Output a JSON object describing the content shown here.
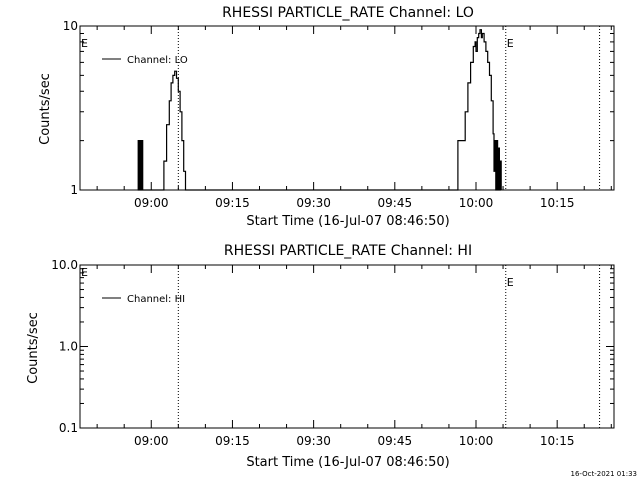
{
  "footer_timestamp": "16-Oct-2021 01:33",
  "chart_data": [
    {
      "type": "line",
      "title": "RHESSI PARTICLE_RATE Channel: LO",
      "xlabel": "Start Time (16-Jul-07 08:46:50)",
      "ylabel": "Counts/sec",
      "yscale": "log",
      "ylim": [
        1,
        10
      ],
      "xlim": [
        "08:46:50",
        "10:25:30"
      ],
      "y_ticks": [
        {
          "value": 1,
          "label": "1"
        },
        {
          "value": 10,
          "label": "10"
        }
      ],
      "x_ticks": [
        {
          "time": "09:00",
          "label": "09:00"
        },
        {
          "time": "09:15",
          "label": "09:15"
        },
        {
          "time": "09:30",
          "label": "09:30"
        },
        {
          "time": "09:45",
          "label": "09:45"
        },
        {
          "time": "10:00",
          "label": "10:00"
        },
        {
          "time": "10:15",
          "label": "10:15"
        }
      ],
      "vlines": [
        {
          "time": "09:05:00",
          "label": ""
        },
        {
          "time": "10:05:30",
          "label": "E"
        },
        {
          "time": "10:22:50",
          "label": ""
        }
      ],
      "edge_label": "E",
      "legend": {
        "position": "top-left",
        "entries": [
          "Channel: LO"
        ]
      },
      "series": [
        {
          "name": "Channel: LO",
          "points": [
            [
              "08:57:30",
              1
            ],
            [
              "08:57:35",
              2
            ],
            [
              "08:57:45",
              1
            ],
            [
              "08:57:55",
              2
            ],
            [
              "08:58:05",
              1
            ],
            [
              "08:58:15",
              2
            ],
            [
              "08:58:25",
              1
            ],
            [
              "09:02:00",
              1
            ],
            [
              "09:02:20",
              1.5
            ],
            [
              "09:02:50",
              2.5
            ],
            [
              "09:03:20",
              3.5
            ],
            [
              "09:03:40",
              4.5
            ],
            [
              "09:04:00",
              5
            ],
            [
              "09:04:20",
              5.3
            ],
            [
              "09:04:40",
              4.8
            ],
            [
              "09:05:00",
              4
            ],
            [
              "09:05:20",
              3
            ],
            [
              "09:05:40",
              2
            ],
            [
              "09:06:00",
              1.3
            ],
            [
              "09:06:20",
              1
            ],
            [
              "09:56:20",
              1
            ],
            [
              "09:56:40",
              2
            ],
            [
              "09:57:40",
              2
            ],
            [
              "09:58:00",
              3
            ],
            [
              "09:58:30",
              4.5
            ],
            [
              "09:59:00",
              6
            ],
            [
              "09:59:30",
              7.5
            ],
            [
              "09:59:50",
              8
            ],
            [
              "10:00:00",
              7
            ],
            [
              "10:00:15",
              8.5
            ],
            [
              "10:00:30",
              9
            ],
            [
              "10:00:45",
              9.5
            ],
            [
              "10:01:00",
              8.5
            ],
            [
              "10:01:10",
              9
            ],
            [
              "10:01:30",
              8
            ],
            [
              "10:01:50",
              7
            ],
            [
              "10:02:10",
              6
            ],
            [
              "10:02:30",
              5
            ],
            [
              "10:02:50",
              3.5
            ],
            [
              "10:03:10",
              2.2
            ],
            [
              "10:03:20",
              1.3
            ],
            [
              "10:03:30",
              2
            ],
            [
              "10:03:40",
              1
            ],
            [
              "10:03:50",
              2
            ],
            [
              "10:04:00",
              1
            ],
            [
              "10:04:10",
              1.8
            ],
            [
              "10:04:20",
              1
            ],
            [
              "10:04:30",
              1.5
            ],
            [
              "10:04:40",
              1
            ]
          ]
        }
      ]
    },
    {
      "type": "line",
      "title": "RHESSI PARTICLE_RATE Channel: HI",
      "xlabel": "Start Time (16-Jul-07 08:46:50)",
      "ylabel": "Counts/sec",
      "yscale": "log",
      "ylim": [
        0.1,
        10
      ],
      "xlim": [
        "08:46:50",
        "10:25:30"
      ],
      "y_ticks": [
        {
          "value": 0.1,
          "label": "0.1"
        },
        {
          "value": 1,
          "label": "1.0"
        },
        {
          "value": 10,
          "label": "10.0"
        }
      ],
      "x_ticks": [
        {
          "time": "09:00",
          "label": "09:00"
        },
        {
          "time": "09:15",
          "label": "09:15"
        },
        {
          "time": "09:30",
          "label": "09:30"
        },
        {
          "time": "09:45",
          "label": "09:45"
        },
        {
          "time": "10:00",
          "label": "10:00"
        },
        {
          "time": "10:15",
          "label": "10:15"
        }
      ],
      "vlines": [
        {
          "time": "09:05:00",
          "label": ""
        },
        {
          "time": "10:05:30",
          "label": "E"
        },
        {
          "time": "10:22:50",
          "label": ""
        }
      ],
      "edge_label": "E",
      "legend": {
        "position": "top-left",
        "entries": [
          "Channel: HI"
        ]
      },
      "series": [
        {
          "name": "Channel: HI",
          "points": []
        }
      ]
    }
  ]
}
